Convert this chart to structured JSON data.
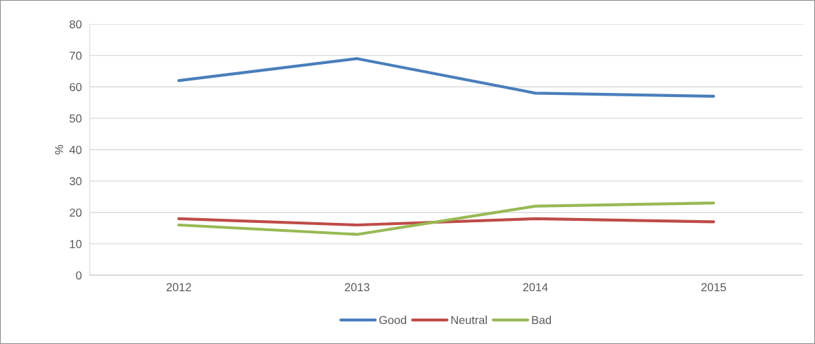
{
  "chart_data": {
    "type": "line",
    "ylabel": "%",
    "categories": [
      "2012",
      "2013",
      "2014",
      "2015"
    ],
    "series": [
      {
        "name": "Good",
        "color": "#4a7ebb",
        "values": [
          62,
          69,
          58,
          57
        ]
      },
      {
        "name": "Neutral",
        "color": "#be4b48",
        "values": [
          18,
          16,
          18,
          17
        ]
      },
      {
        "name": "Bad",
        "color": "#98b954",
        "values": [
          16,
          13,
          22,
          23
        ]
      }
    ],
    "ylim": [
      0,
      80
    ],
    "yticks": [
      0,
      10,
      20,
      30,
      40,
      50,
      60,
      70,
      80
    ],
    "grid": "y",
    "legend": "bottom",
    "marker": "none",
    "line_style": "solid"
  }
}
